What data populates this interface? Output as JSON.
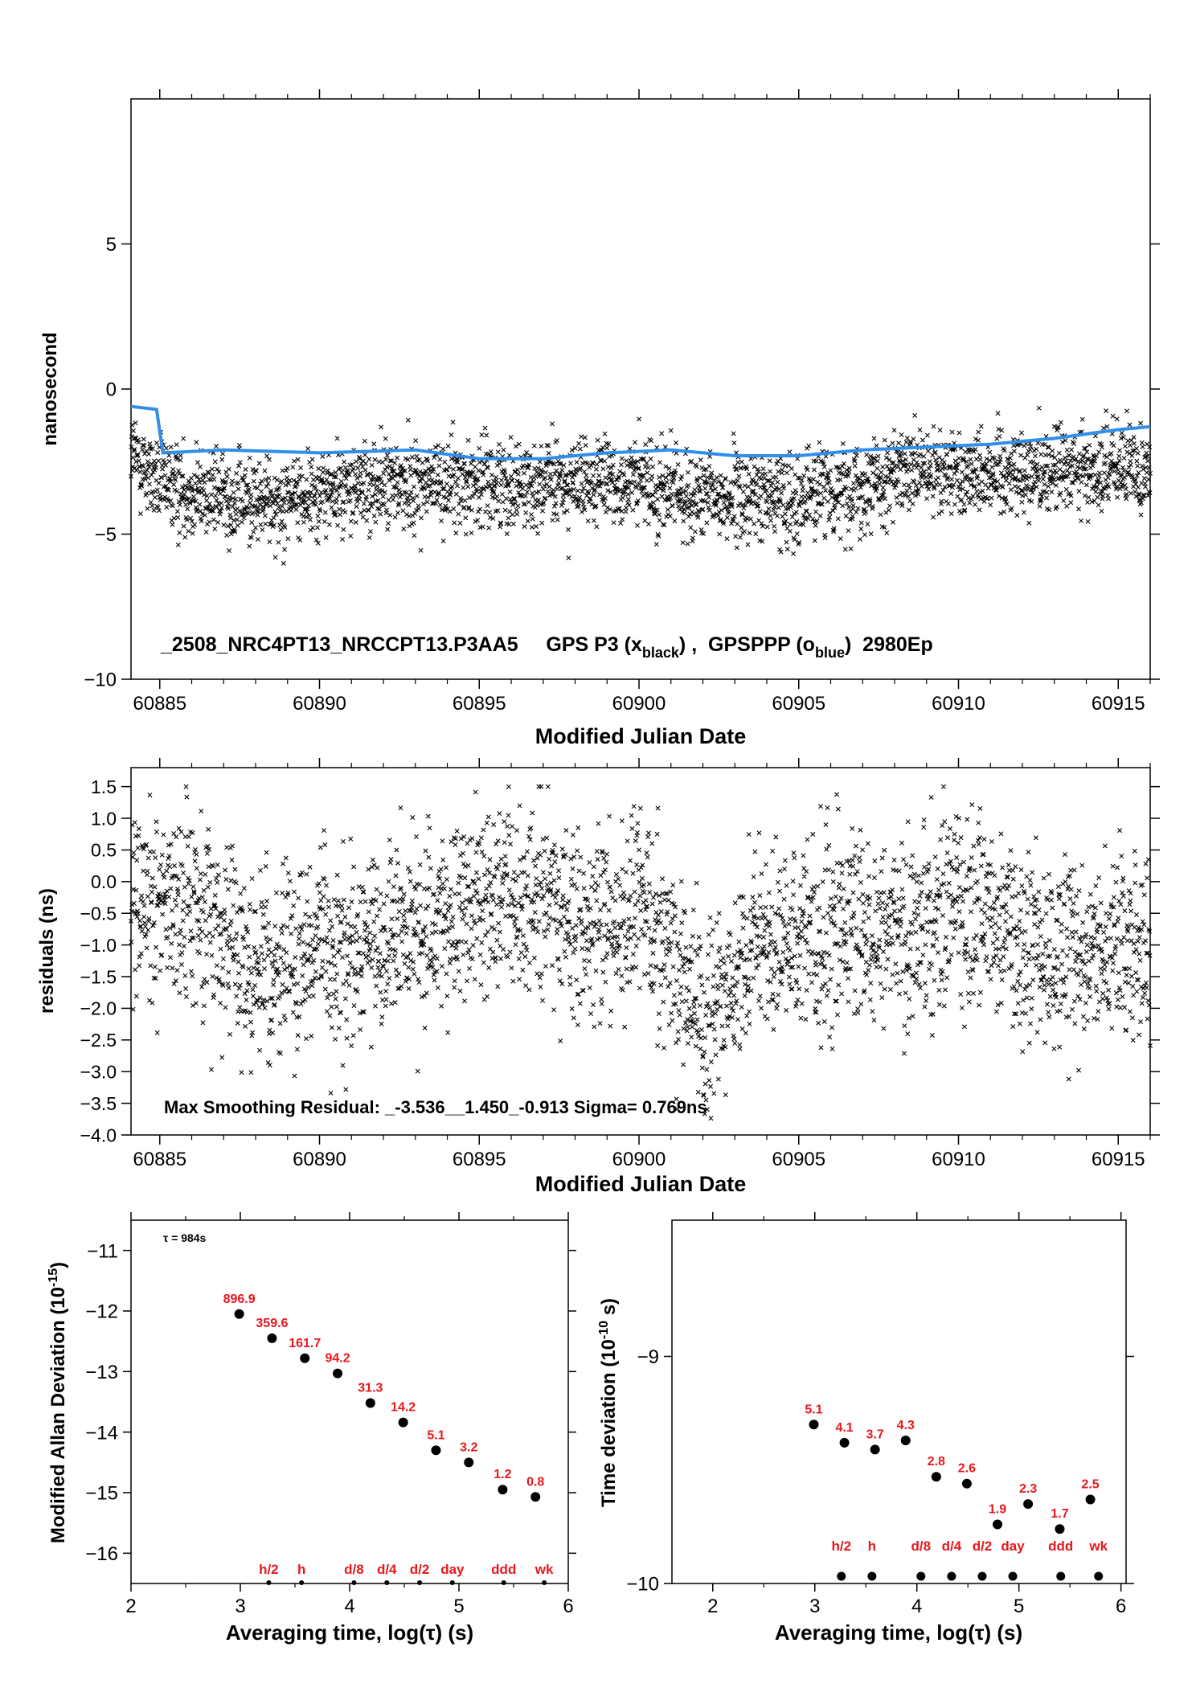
{
  "chart_data": [
    {
      "type": "scatter",
      "xlabel": "Modified Julian Date",
      "ylabel": "nanosecond",
      "xlim": [
        60884.1,
        60916.0
      ],
      "ylim": [
        -10,
        10
      ],
      "xticks": [
        60885,
        60890,
        60895,
        60900,
        60905,
        60910,
        60915
      ],
      "yticks": [
        -10,
        -5,
        0,
        5
      ],
      "annotation": {
        "main": "_2508_NRC4PT13_NRCCPT13.P3AA5     GPS P3 (x",
        "sub1": "black",
        "mid": ") ,  GPSPPP (o",
        "sub2": "blue",
        "end": ")  2980Ep"
      },
      "series": [
        {
          "marker": "x",
          "color": "#000000",
          "x_range": [
            60884.1,
            60916.0
          ],
          "n_points": 2980,
          "trend": {
            "x": [
              60884.1,
              60885,
              60888,
              60892,
              60895,
              60898,
              60900,
              60902,
              60905,
              60908,
              60911,
              60914,
              60916
            ],
            "y": [
              -2.2,
              -3.3,
              -3.9,
              -3.3,
              -3.2,
              -3.3,
              -3.2,
              -3.8,
              -3.7,
              -3.0,
              -2.8,
              -2.8,
              -2.7
            ]
          },
          "spread": 0.75
        },
        {
          "marker": "o",
          "color": "#2f8fea",
          "x": [
            60884.1,
            60884.9,
            60885.1,
            60887,
            60890,
            60893,
            60895,
            60897,
            60899,
            60901,
            60903,
            60905,
            60907,
            60909,
            60911,
            60913,
            60915,
            60916
          ],
          "y": [
            -0.6,
            -0.7,
            -2.2,
            -2.1,
            -2.2,
            -2.1,
            -2.4,
            -2.4,
            -2.2,
            -2.1,
            -2.3,
            -2.3,
            -2.1,
            -2.0,
            -1.9,
            -1.7,
            -1.4,
            -1.3
          ]
        }
      ]
    },
    {
      "type": "scatter",
      "xlabel": "Modified Julian Date",
      "ylabel": "residuals (ns)",
      "xlim": [
        60884.1,
        60916.0
      ],
      "ylim": [
        -4.0,
        1.8
      ],
      "xticks": [
        60885,
        60890,
        60895,
        60900,
        60905,
        60910,
        60915
      ],
      "yticks": [
        -4.0,
        -3.5,
        -3.0,
        -2.5,
        -2.0,
        -1.5,
        -1.0,
        -0.5,
        0.0,
        0.5,
        1.0,
        1.5
      ],
      "annotation": "Max Smoothing Residual: _-3.536__1.450_-0.913  Sigma= 0.769ns",
      "series": [
        {
          "marker": "x",
          "color": "#000000",
          "x_range": [
            60884.1,
            60916.0
          ],
          "n_points": 2980,
          "trend": {
            "x": [
              60884.1,
              60886,
              60888,
              60890,
              60892,
              60895,
              60897,
              60899,
              60900,
              60902,
              60904,
              60906,
              60908,
              60910,
              60912,
              60914,
              60916
            ],
            "y": [
              -0.6,
              -0.3,
              -1.4,
              -1.1,
              -1.0,
              -0.3,
              -0.2,
              -0.9,
              -0.3,
              -2.2,
              -1.0,
              -0.8,
              -0.8,
              -0.4,
              -0.9,
              -1.2,
              -1.0
            ]
          },
          "spread": 0.75
        }
      ]
    },
    {
      "type": "scatter",
      "xlabel": "Averaging time, log(τ) (s)",
      "ylabel_main": "Modified Allan Deviation (10",
      "ylabel_sup": "-15",
      "ylabel_end": ")",
      "xlim": [
        2,
        6
      ],
      "ylim": [
        -16.5,
        -10.5
      ],
      "xticks": [
        2,
        3,
        4,
        5,
        6
      ],
      "yticks": [
        -16,
        -15,
        -14,
        -13,
        -12,
        -11
      ],
      "tau_label": "τ = 984s",
      "x": [
        2.99,
        3.29,
        3.59,
        3.89,
        4.19,
        4.49,
        4.79,
        5.09,
        5.4,
        5.7
      ],
      "y": [
        -12.05,
        -12.45,
        -12.78,
        -13.03,
        -13.52,
        -13.84,
        -14.3,
        -14.5,
        -14.95,
        -15.07
      ],
      "labels": [
        "896.9",
        "359.6",
        "161.7",
        "94.2",
        "31.3",
        "14.2",
        "5.1",
        "3.2",
        "1.2",
        "0.8"
      ],
      "markers": {
        "x": [
          3.26,
          3.56,
          4.04,
          4.34,
          4.64,
          4.94,
          5.41,
          5.78
        ],
        "labels": [
          "h/2",
          "h",
          "d/8",
          "d/4",
          "d/2",
          "day",
          "ddd",
          "wk"
        ]
      }
    },
    {
      "type": "scatter",
      "xlabel": "Averaging time, log(τ) (s)",
      "ylabel_main": "Time deviation (10",
      "ylabel_sup": "-10",
      "ylabel_end": " s)",
      "xlim": [
        1.6,
        6.05
      ],
      "ylim": [
        -10.0,
        -8.4
      ],
      "xticks": [
        2,
        3,
        4,
        5,
        6
      ],
      "yticks": [
        -10,
        -9
      ],
      "x": [
        2.99,
        3.29,
        3.59,
        3.89,
        4.19,
        4.49,
        4.79,
        5.09,
        5.4,
        5.7
      ],
      "y": [
        -9.3,
        -9.38,
        -9.41,
        -9.37,
        -9.53,
        -9.56,
        -9.74,
        -9.65,
        -9.76,
        -9.63
      ],
      "labels": [
        "5.1",
        "4.1",
        "3.7",
        "4.3",
        "2.8",
        "2.6",
        "1.9",
        "2.3",
        "1.7",
        "2.5"
      ],
      "markers": {
        "x": [
          3.26,
          3.56,
          4.04,
          4.34,
          4.64,
          4.94,
          5.41,
          5.78
        ],
        "labels": [
          "h/2",
          "h",
          "d/8",
          "d/4",
          "d/2",
          "day",
          "ddd",
          "wk"
        ]
      }
    }
  ],
  "colors": {
    "points": "#000000",
    "smooth": "#2f8fea",
    "labels": "#e8171c",
    "axis": "#000000"
  }
}
